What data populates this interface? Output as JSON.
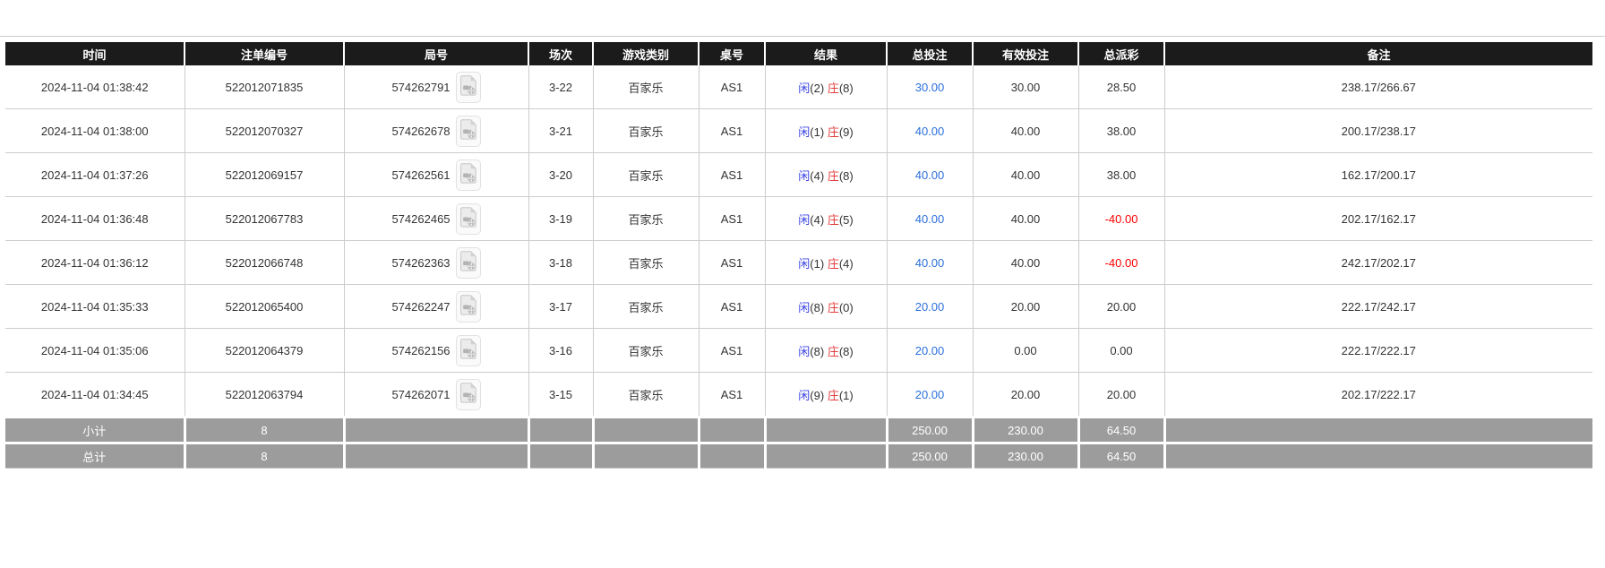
{
  "colors": {
    "header_bg": "#1b1b1b",
    "footer_bg": "#9c9c9c",
    "grid_border": "#cccccc",
    "player_blue": "#3b43e3",
    "banker_red": "#e23b3b",
    "amount_blue": "#2b6fdb",
    "negative_red": "#ff0000"
  },
  "icons": {
    "video_replay": "video-file-icon"
  },
  "table": {
    "columns": [
      {
        "key": "time",
        "label": "时间"
      },
      {
        "key": "bet_id",
        "label": "注单编号"
      },
      {
        "key": "round_id",
        "label": "局号"
      },
      {
        "key": "session",
        "label": "场次"
      },
      {
        "key": "game_type",
        "label": "游戏类别"
      },
      {
        "key": "table_no",
        "label": "桌号"
      },
      {
        "key": "result",
        "label": "结果"
      },
      {
        "key": "total_bet",
        "label": "总投注"
      },
      {
        "key": "valid_bet",
        "label": "有效投注"
      },
      {
        "key": "total_payout",
        "label": "总派彩"
      },
      {
        "key": "remark",
        "label": "备注"
      }
    ],
    "rows": [
      {
        "time": "2024-11-04 01:38:42",
        "bet_id": "522012071835",
        "round_id": "574262791",
        "session": "3-22",
        "game_type": "百家乐",
        "table_no": "AS1",
        "result": {
          "player_label": "闲",
          "player_count": "(2)",
          "banker_label": "庄",
          "banker_count": "(8)"
        },
        "total_bet": "30.00",
        "valid_bet": "30.00",
        "total_payout": "28.50",
        "payout_negative": false,
        "remark": "238.17/266.67"
      },
      {
        "time": "2024-11-04 01:38:00",
        "bet_id": "522012070327",
        "round_id": "574262678",
        "session": "3-21",
        "game_type": "百家乐",
        "table_no": "AS1",
        "result": {
          "player_label": "闲",
          "player_count": "(1)",
          "banker_label": "庄",
          "banker_count": "(9)"
        },
        "total_bet": "40.00",
        "valid_bet": "40.00",
        "total_payout": "38.00",
        "payout_negative": false,
        "remark": "200.17/238.17"
      },
      {
        "time": "2024-11-04 01:37:26",
        "bet_id": "522012069157",
        "round_id": "574262561",
        "session": "3-20",
        "game_type": "百家乐",
        "table_no": "AS1",
        "result": {
          "player_label": "闲",
          "player_count": "(4)",
          "banker_label": "庄",
          "banker_count": "(8)"
        },
        "total_bet": "40.00",
        "valid_bet": "40.00",
        "total_payout": "38.00",
        "payout_negative": false,
        "remark": "162.17/200.17"
      },
      {
        "time": "2024-11-04 01:36:48",
        "bet_id": "522012067783",
        "round_id": "574262465",
        "session": "3-19",
        "game_type": "百家乐",
        "table_no": "AS1",
        "result": {
          "player_label": "闲",
          "player_count": "(4)",
          "banker_label": "庄",
          "banker_count": "(5)"
        },
        "total_bet": "40.00",
        "valid_bet": "40.00",
        "total_payout": "-40.00",
        "payout_negative": true,
        "remark": "202.17/162.17"
      },
      {
        "time": "2024-11-04 01:36:12",
        "bet_id": "522012066748",
        "round_id": "574262363",
        "session": "3-18",
        "game_type": "百家乐",
        "table_no": "AS1",
        "result": {
          "player_label": "闲",
          "player_count": "(1)",
          "banker_label": "庄",
          "banker_count": "(4)"
        },
        "total_bet": "40.00",
        "valid_bet": "40.00",
        "total_payout": "-40.00",
        "payout_negative": true,
        "remark": "242.17/202.17"
      },
      {
        "time": "2024-11-04 01:35:33",
        "bet_id": "522012065400",
        "round_id": "574262247",
        "session": "3-17",
        "game_type": "百家乐",
        "table_no": "AS1",
        "result": {
          "player_label": "闲",
          "player_count": "(8)",
          "banker_label": "庄",
          "banker_count": "(0)"
        },
        "total_bet": "20.00",
        "valid_bet": "20.00",
        "total_payout": "20.00",
        "payout_negative": false,
        "remark": "222.17/242.17"
      },
      {
        "time": "2024-11-04 01:35:06",
        "bet_id": "522012064379",
        "round_id": "574262156",
        "session": "3-16",
        "game_type": "百家乐",
        "table_no": "AS1",
        "result": {
          "player_label": "闲",
          "player_count": "(8)",
          "banker_label": "庄",
          "banker_count": "(8)"
        },
        "total_bet": "20.00",
        "valid_bet": "0.00",
        "total_payout": "0.00",
        "payout_negative": false,
        "remark": "222.17/222.17"
      },
      {
        "time": "2024-11-04 01:34:45",
        "bet_id": "522012063794",
        "round_id": "574262071",
        "session": "3-15",
        "game_type": "百家乐",
        "table_no": "AS1",
        "result": {
          "player_label": "闲",
          "player_count": "(9)",
          "banker_label": "庄",
          "banker_count": "(1)"
        },
        "total_bet": "20.00",
        "valid_bet": "20.00",
        "total_payout": "20.00",
        "payout_negative": false,
        "remark": "202.17/222.17"
      }
    ],
    "footer_rows": [
      {
        "key": "subtotal",
        "label": "小计",
        "count": "8",
        "total_bet": "250.00",
        "valid_bet": "230.00",
        "total_payout": "64.50"
      },
      {
        "key": "total",
        "label": "总计",
        "count": "8",
        "total_bet": "250.00",
        "valid_bet": "230.00",
        "total_payout": "64.50"
      }
    ]
  }
}
